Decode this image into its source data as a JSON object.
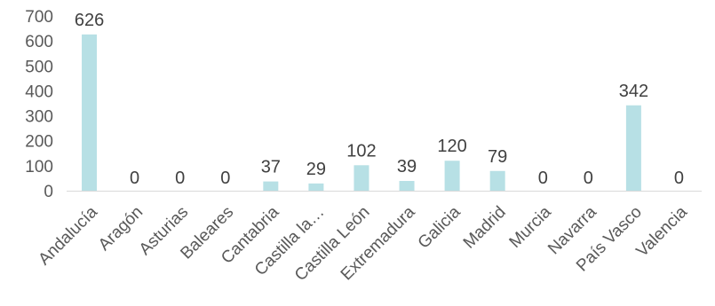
{
  "chart_data": {
    "type": "bar",
    "categories": [
      "Andalucía",
      "Aragón",
      "Asturias",
      "Baleares",
      "Cantabria",
      "Castilla la…",
      "Castilla León",
      "Extremadura",
      "Galicia",
      "Madrid",
      "Murcia",
      "Navarra",
      "País Vasco",
      "Valencia"
    ],
    "values": [
      626,
      0,
      0,
      0,
      37,
      29,
      102,
      39,
      120,
      79,
      0,
      0,
      342,
      0
    ],
    "data_labels": [
      "626",
      "0",
      "0",
      "0",
      "37",
      "29",
      "102",
      "39",
      "120",
      "79",
      "0",
      "0",
      "342",
      "0"
    ],
    "y_ticks": [
      "0",
      "100",
      "200",
      "300",
      "400",
      "500",
      "600",
      "700"
    ],
    "ylim": [
      0,
      700
    ],
    "grid": false,
    "legend": "none",
    "colors": {
      "bar": "#b7e0e5",
      "axis": "#d9d9d9",
      "text": "#595959"
    }
  }
}
